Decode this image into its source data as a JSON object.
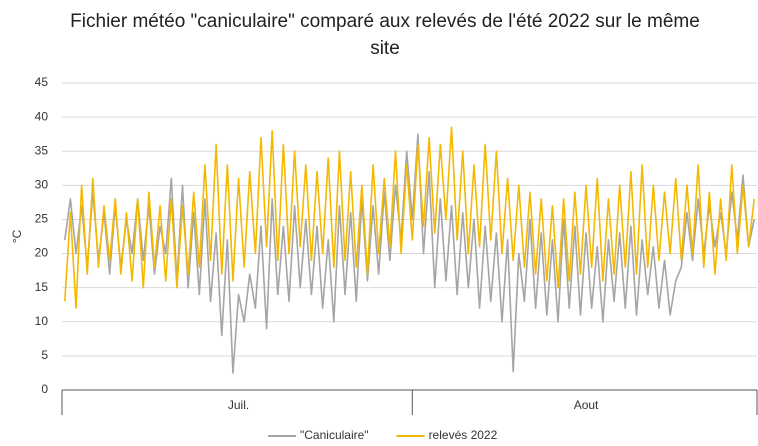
{
  "chart_data": {
    "type": "line",
    "title": "Fichier météo \"caniculaire\" comparé aux relevés de l'été 2022 sur le même site",
    "y_label": "°C",
    "categories": [
      null,
      null,
      null,
      null,
      null,
      null,
      null,
      null,
      null,
      null,
      null,
      null,
      null,
      null,
      null,
      null,
      null,
      null,
      null,
      null,
      null,
      null,
      null,
      null,
      null,
      null,
      null,
      null,
      null,
      null,
      null,
      "Juil.",
      null,
      null,
      null,
      null,
      null,
      null,
      null,
      null,
      null,
      null,
      null,
      null,
      null,
      null,
      null,
      null,
      null,
      null,
      null,
      null,
      null,
      null,
      null,
      null,
      null,
      null,
      null,
      null,
      null,
      null,
      null,
      null,
      null,
      null,
      null,
      null,
      null,
      null,
      null,
      null,
      null,
      null,
      null,
      null,
      null,
      null,
      null,
      null,
      null,
      null,
      null,
      null,
      null,
      null,
      null,
      null,
      null,
      null,
      null,
      null,
      null,
      "Aout",
      null,
      null,
      null,
      null,
      null,
      null,
      null,
      null,
      null,
      null,
      null,
      null,
      null,
      null,
      null,
      null,
      null,
      null,
      null,
      null,
      null,
      null,
      null,
      null,
      null,
      null,
      null,
      null,
      null,
      null
    ],
    "series": [
      {
        "name": "\"Caniculaire\"",
        "color": "#a5a5a5",
        "values": [
          22,
          28,
          20,
          27,
          18,
          29,
          19,
          26,
          17,
          27,
          18,
          25,
          20,
          28,
          19,
          27,
          17,
          24,
          20,
          31,
          16,
          30,
          15,
          26,
          14,
          28,
          13,
          23,
          8,
          22,
          2.5,
          14,
          10,
          17,
          12,
          24,
          9,
          28,
          14,
          24,
          13,
          27,
          15,
          25,
          14,
          24,
          12,
          22,
          10,
          27,
          14,
          26,
          13,
          28,
          16,
          27,
          17,
          29,
          19,
          30,
          22,
          35,
          25,
          37.5,
          20,
          32,
          15,
          28,
          16,
          27,
          14,
          26,
          15,
          25,
          12,
          24,
          13,
          23,
          10,
          22,
          2.7,
          20,
          13,
          25,
          12,
          23,
          11,
          22,
          10,
          25,
          12,
          24,
          11,
          23,
          12,
          21,
          10,
          22,
          13,
          23,
          12,
          24,
          11,
          22,
          14,
          21,
          12,
          19,
          11,
          16,
          18,
          26,
          19,
          28,
          20,
          27,
          21,
          26,
          20,
          29,
          22,
          31.5,
          21,
          25
        ]
      },
      {
        "name": "relevés 2022",
        "color": "#f5b800",
        "values": [
          13,
          26,
          12,
          30,
          17,
          31,
          18,
          27,
          19,
          28,
          17,
          26,
          16,
          28,
          15,
          29,
          18,
          27,
          16,
          28,
          15,
          27,
          17,
          29,
          18,
          33,
          19,
          36,
          17,
          33,
          16,
          31,
          18,
          32,
          20,
          37,
          21,
          38,
          19,
          36,
          20,
          35,
          21,
          33,
          19,
          32,
          20,
          34,
          18,
          35,
          19,
          32,
          18,
          30,
          17,
          33,
          20,
          31,
          21,
          35,
          20,
          33,
          22,
          36,
          24,
          37,
          23,
          36,
          25,
          38.5,
          22,
          35,
          20,
          33,
          21,
          36,
          22,
          35,
          20,
          31,
          19,
          30,
          18,
          29,
          17,
          28,
          16,
          27,
          15,
          28,
          16,
          29,
          17,
          30,
          18,
          31,
          16,
          28,
          17,
          30,
          18,
          32,
          17,
          33,
          18,
          30,
          19,
          29,
          20,
          31,
          19,
          30,
          20,
          33,
          18,
          29,
          17,
          28,
          19,
          33,
          20,
          30,
          21,
          28
        ]
      }
    ],
    "ylim": [
      0,
      45
    ],
    "yticks": [
      0,
      5,
      10,
      15,
      20,
      25,
      30,
      35,
      40,
      45
    ],
    "grid": true,
    "legend": "bottom"
  }
}
